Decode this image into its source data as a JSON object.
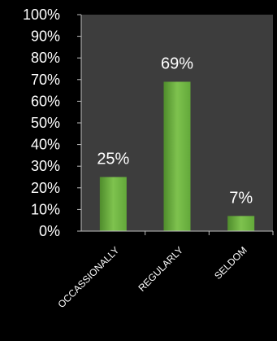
{
  "chart_data": {
    "type": "bar",
    "categories": [
      "OCCASSIONALLY",
      "REGULARLY",
      "SELDOM"
    ],
    "values": [
      25,
      69,
      7
    ],
    "value_labels": [
      "25%",
      "69%",
      "7%"
    ],
    "ylim": [
      0,
      100
    ],
    "y_ticks": [
      0,
      10,
      20,
      30,
      40,
      50,
      60,
      70,
      80,
      90,
      100
    ],
    "y_tick_labels": [
      "0%",
      "10%",
      "20%",
      "30%",
      "40%",
      "50%",
      "60%",
      "70%",
      "80%",
      "90%",
      "100%"
    ],
    "grid": false,
    "legend": "none",
    "colors": {
      "background": "#000000",
      "plot_area": "#3d3d3d",
      "bar": "#63a93a",
      "bar_light": "#7ec24e",
      "bar_dark": "#4f8c2c",
      "text": "#ffffff",
      "axis": "#bfbfbf"
    }
  }
}
